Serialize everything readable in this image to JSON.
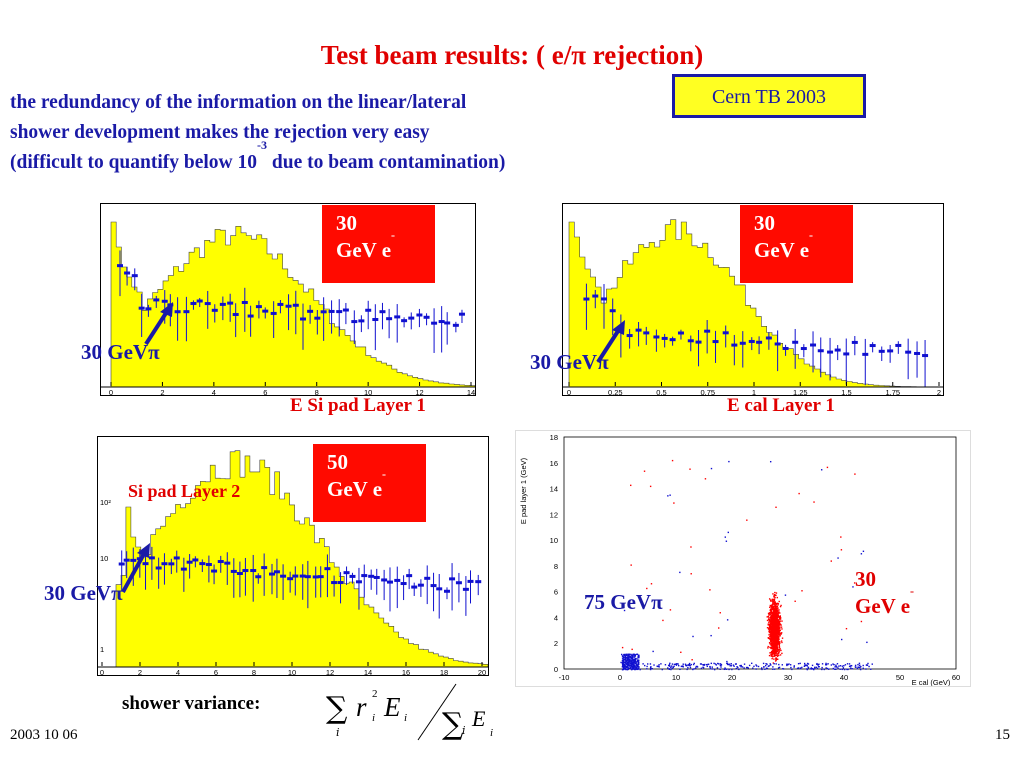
{
  "slide": {
    "title": "Test beam results: ( e/π rejection)",
    "intro_line1": "the redundancy of the information  on the linear/lateral",
    "intro_line2": "shower development makes the rejection very easy",
    "intro_line3_pre": "(difficult to quantify below 10",
    "intro_line3_sup": "-3",
    "intro_line3_post": " due to beam contamination)",
    "cern_box": "Cern TB 2003",
    "footer_date": "2003 10 06",
    "page_number": "15"
  },
  "panels": {
    "si_layer1": {
      "energy": "30",
      "particle": "GeV e",
      "charge": "-",
      "pion_label": "30 GeVπ",
      "caption": "E Si pad Layer 1",
      "x_ticks": [
        "0",
        "2",
        "4",
        "6",
        "8",
        "10",
        "12",
        "14"
      ]
    },
    "cal_layer1": {
      "energy": "30",
      "particle": "GeV e",
      "charge": "-",
      "pion_label": "30 GeVπ",
      "caption": "E cal Layer 1",
      "x_ticks": [
        "0",
        "0.25",
        "0.5",
        "0.75",
        "1",
        "1.25",
        "1.5",
        "1.75",
        "2"
      ]
    },
    "si_layer2": {
      "energy": "50",
      "particle": "GeV e",
      "charge": "-",
      "pion_label": "30 GeVπ",
      "caption": "Si pad Layer 2",
      "x_ticks": [
        "0",
        "2",
        "4",
        "6",
        "8",
        "10",
        "12",
        "14",
        "16",
        "18",
        "20"
      ],
      "y_ticks": [
        "1",
        "10",
        "10²"
      ]
    },
    "scatter": {
      "pion_label": "75 GeVπ",
      "electron_energy": "30",
      "electron_particle": "GeV e",
      "electron_charge": "-",
      "x_axis_title": "E cal (GeV)",
      "y_axis_title": "E pad layer 1 (GeV)",
      "x_ticks": [
        "-10",
        "0",
        "10",
        "20",
        "30",
        "40",
        "50",
        "60"
      ],
      "y_ticks": [
        "0",
        "2",
        "4",
        "6",
        "8",
        "10",
        "12",
        "14",
        "16",
        "18"
      ]
    }
  },
  "formula": {
    "label": "shower variance:",
    "sum_symbol": "∑",
    "r": "r",
    "i": "i",
    "two": "2",
    "E": "E"
  },
  "colors": {
    "title_red": "#e00000",
    "text_blue": "#1a1aa6",
    "histogram_yellow": "#ffff00",
    "label_box_red": "#ff0a00",
    "cern_box_fill": "#ffff22",
    "scatter_red": "#ff0000",
    "scatter_blue": "#1010d0"
  }
}
